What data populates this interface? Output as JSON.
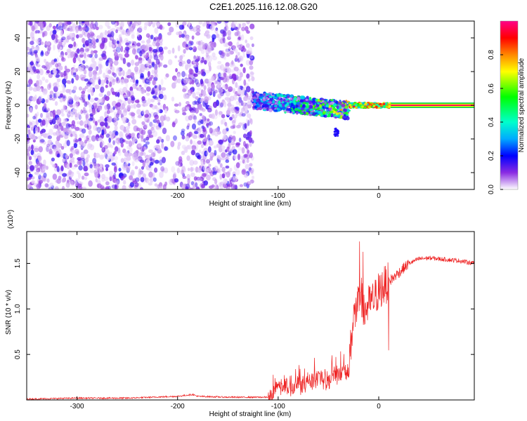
{
  "figure": {
    "title": "C2E1.2025.116.12.08.G20"
  },
  "chart_data": [
    {
      "type": "heatmap",
      "title": "C2E1.2025.116.12.08.G20",
      "xlabel": "Height of straight line (km)",
      "ylabel": "Frequency (Hz)",
      "xlim": [
        -350,
        95
      ],
      "ylim": [
        -50,
        50
      ],
      "x_ticks": [
        -300,
        -200,
        -100,
        0
      ],
      "y_ticks": [
        -40,
        -20,
        0,
        20,
        40
      ],
      "colorbar": {
        "label": "Normalized spectral amplitude",
        "range": [
          0,
          1
        ],
        "ticks": [
          0.0,
          0.2,
          0.4,
          0.6,
          0.8
        ],
        "tick_labels": [
          "0.0",
          "0.2",
          "0.4",
          "0.6",
          "0.8"
        ],
        "colors": [
          "#ffffff",
          "#7700ff",
          "#0000ff",
          "#00ffff",
          "#00ff00",
          "#ffff00",
          "#ff8800",
          "#ff0000",
          "#ff00aa"
        ]
      },
      "regions": [
        {
          "name": "noise",
          "x": [
            -350,
            -125
          ],
          "freq": [
            -50,
            50
          ],
          "amplitude": 0.08
        },
        {
          "name": "onset",
          "x": [
            -125,
            -30
          ],
          "freq_center": [
            6,
            0
          ],
          "amplitude": 0.3
        },
        {
          "name": "tone",
          "x": [
            -30,
            95
          ],
          "freq": 0,
          "amplitude": 0.85
        }
      ]
    },
    {
      "type": "line",
      "xlabel": "Height of straight line (km)",
      "ylabel": "SNR (10 * v/v)",
      "y_scale_label": "(x10⁴)",
      "xlim": [
        -350,
        95
      ],
      "ylim": [
        0,
        1.85
      ],
      "x_ticks": [
        -300,
        -200,
        -100,
        0
      ],
      "y_ticks": [
        0.5,
        1.0,
        1.5
      ],
      "y_tick_labels": [
        "0.5",
        "1.0",
        "1.5"
      ],
      "color": "#ee2222",
      "series": [
        {
          "x": [
            -350,
            -300,
            -250,
            -200,
            -185,
            -180,
            -150,
            -110,
            -100,
            -90,
            -80,
            -70,
            -60,
            -50,
            -40,
            -30,
            -25,
            -20,
            -18,
            -15,
            -10,
            -5,
            0,
            10,
            20,
            30,
            40,
            50,
            60,
            70,
            80,
            95
          ],
          "values": [
            0.01,
            0.02,
            0.02,
            0.04,
            0.06,
            0.04,
            0.03,
            0.03,
            0.12,
            0.15,
            0.18,
            0.2,
            0.25,
            0.22,
            0.3,
            0.35,
            0.9,
            1.05,
            1.2,
            0.95,
            1.05,
            1.1,
            1.2,
            1.3,
            1.4,
            1.5,
            1.55,
            1.56,
            1.55,
            1.54,
            1.53,
            1.5
          ]
        }
      ]
    }
  ]
}
